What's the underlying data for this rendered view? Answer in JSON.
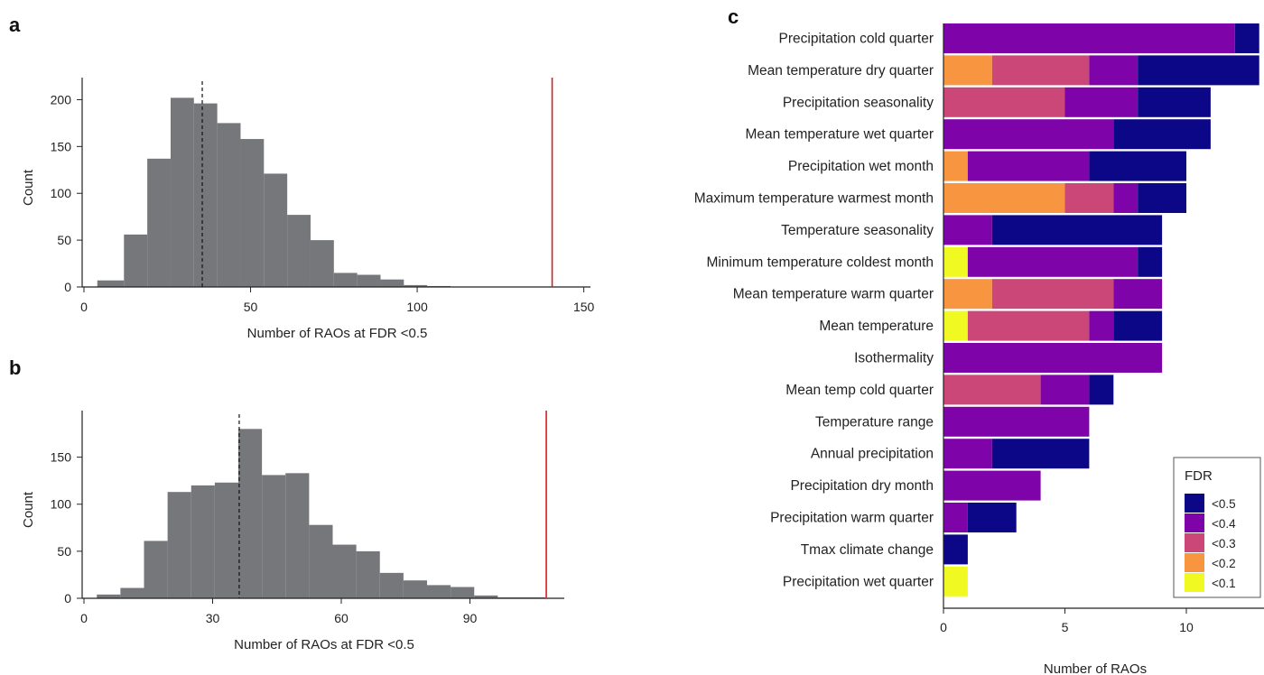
{
  "colors": {
    "bar": "#76777b",
    "threshold": "#d71e1e",
    "axis": "#222222",
    "fdr": {
      "<0.5": "#0c0786",
      "<0.4": "#7e03a8",
      "<0.3": "#cb4778",
      "<0.2": "#f89540",
      "<0.1": "#f0f921"
    }
  },
  "panels": {
    "a": "a",
    "b": "b",
    "c": "c"
  },
  "chart_data": [
    {
      "panel": "a",
      "type": "bar",
      "xlabel": "Number of RAOs at FDR <0.5",
      "ylabel": "Count",
      "xlim": [
        0,
        152
      ],
      "ylim": [
        0,
        212
      ],
      "xticks": [
        0,
        50,
        100,
        150
      ],
      "yticks": [
        0,
        50,
        100,
        150,
        200
      ],
      "bin_edges": [
        4,
        12,
        19,
        26,
        33,
        40,
        47,
        54,
        61,
        68,
        75,
        82,
        89,
        96,
        103,
        110,
        117,
        124,
        131,
        138,
        145,
        152
      ],
      "values": [
        7,
        56,
        137,
        202,
        196,
        175,
        158,
        121,
        77,
        50,
        15,
        13,
        8,
        2,
        1,
        0,
        0,
        0,
        0,
        0,
        0
      ],
      "mean_line": 35.5,
      "observed_line": 140.5
    },
    {
      "panel": "b",
      "type": "bar",
      "xlabel": "Number of RAOs at FDR <0.5",
      "ylabel": "Count",
      "xlim": [
        0,
        112
      ],
      "ylim": [
        0,
        188
      ],
      "xticks": [
        0,
        30,
        60,
        90
      ],
      "yticks": [
        0,
        50,
        100,
        150
      ],
      "bin_edges": [
        3,
        8.5,
        14,
        19.5,
        25,
        30.5,
        36,
        41.5,
        47,
        52.5,
        58,
        63.5,
        69,
        74.5,
        80,
        85.5,
        91,
        96.5,
        102,
        107.5
      ],
      "values": [
        4,
        11,
        61,
        113,
        120,
        123,
        180,
        131,
        133,
        78,
        57,
        50,
        27,
        19,
        14,
        12,
        3,
        1,
        1
      ],
      "mean_line": 36.2,
      "observed_line": 107.8
    },
    {
      "panel": "c",
      "type": "bar",
      "orientation": "horizontal",
      "stacked": true,
      "xlabel": "Number of RAOs",
      "xlim": [
        0,
        13
      ],
      "xticks": [
        0,
        5,
        10
      ],
      "legend": {
        "title": "FDR",
        "position": "bottom-right"
      },
      "categories": [
        "Precipitation cold quarter",
        "Mean temperature dry quarter",
        "Precipitation seasonality",
        "Mean temperature wet quarter",
        "Precipitation wet month",
        "Maximum temperature warmest month",
        "Temperature seasonality",
        "Minimum temperature coldest month",
        "Mean temperature warm quarter",
        "Mean temperature",
        "Isothermality",
        "Mean temp cold quarter",
        "Temperature range",
        "Annual precipitation",
        "Precipitation dry month",
        "Precipitation warm quarter",
        "Tmax climate change",
        "Precipitation wet quarter"
      ],
      "series": [
        {
          "name": "<0.1",
          "values": [
            0,
            0,
            0,
            0,
            0,
            0,
            0,
            1,
            0,
            1,
            0,
            0,
            0,
            0,
            0,
            0,
            0,
            1
          ]
        },
        {
          "name": "<0.2",
          "values": [
            0,
            2,
            0,
            0,
            1,
            5,
            0,
            0,
            2,
            0,
            0,
            0,
            0,
            0,
            0,
            0,
            0,
            0
          ]
        },
        {
          "name": "<0.3",
          "values": [
            0,
            4,
            5,
            0,
            0,
            2,
            0,
            0,
            5,
            5,
            0,
            4,
            0,
            0,
            0,
            0,
            0,
            0
          ]
        },
        {
          "name": "<0.4",
          "values": [
            12,
            2,
            3,
            7,
            5,
            1,
            2,
            7,
            2,
            1,
            9,
            2,
            6,
            2,
            4,
            1,
            0,
            0
          ]
        },
        {
          "name": "<0.5",
          "values": [
            1,
            5,
            3,
            4,
            4,
            2,
            7,
            1,
            0,
            2,
            0,
            1,
            0,
            4,
            0,
            2,
            1,
            0
          ]
        }
      ]
    }
  ]
}
